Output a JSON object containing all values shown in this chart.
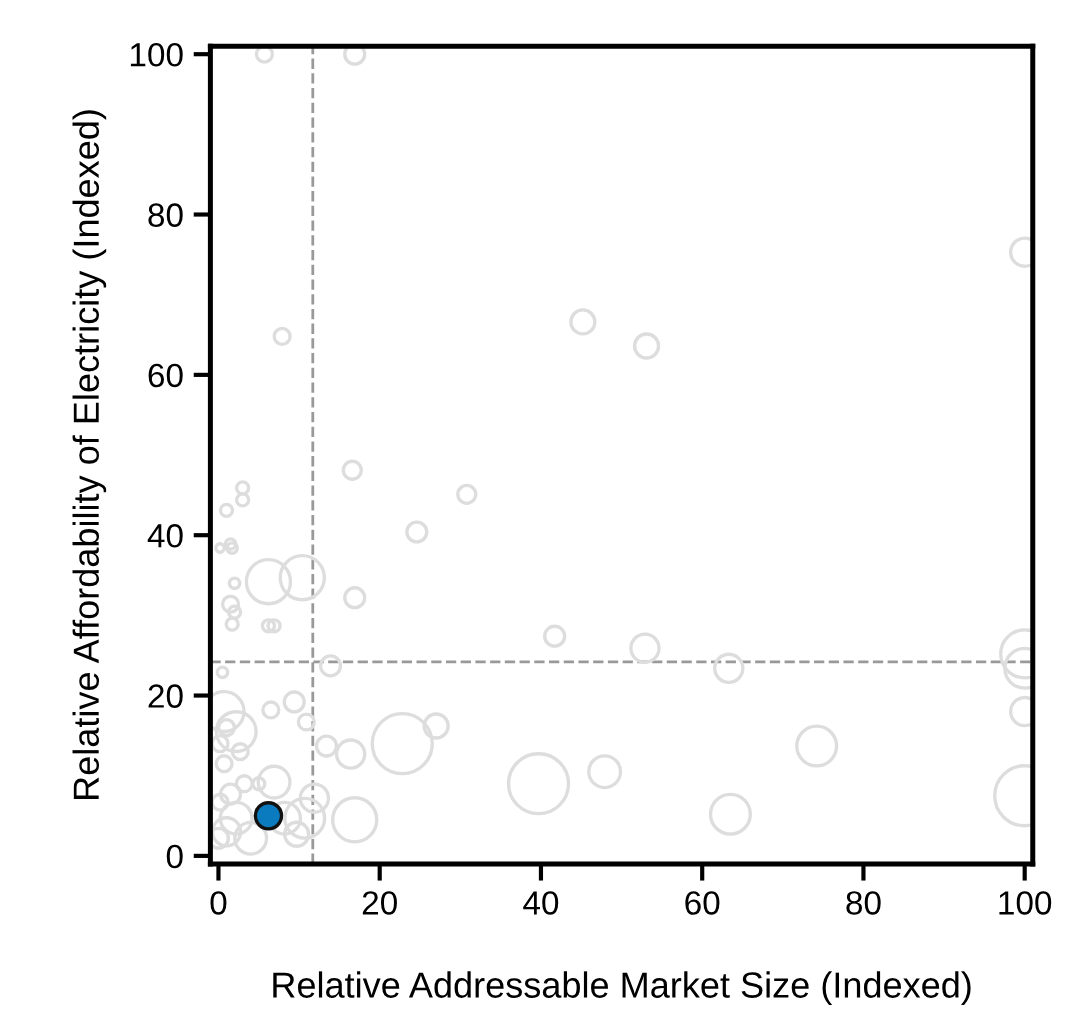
{
  "chart_data": {
    "type": "bubble",
    "xlabel": "Relative Addressable Market Size (Indexed)",
    "ylabel": "Relative Affordability of Electricity (Indexed)",
    "xlim": [
      -1,
      101
    ],
    "ylim": [
      -1,
      101
    ],
    "xticks": [
      0,
      20,
      40,
      60,
      80,
      100
    ],
    "yticks": [
      0,
      20,
      40,
      60,
      80,
      100
    ],
    "grid": false,
    "legend": false,
    "ref_lines": [
      {
        "axis": "x",
        "value": 11.7,
        "label": null,
        "color": "#999999",
        "line_style": "dashed"
      },
      {
        "axis": "y",
        "value": 24.2,
        "label": null,
        "color": "#999999",
        "line_style": "dashed"
      }
    ],
    "series": [
      {
        "color": "#dddddd",
        "x": [
          5.7,
          16.9,
          7.9,
          45.2,
          53.1,
          100,
          16.6,
          3.0,
          3.0,
          1.0,
          30.8,
          24.6,
          1.5,
          1.7,
          0.2,
          6.2,
          10.4,
          2.0,
          16.9,
          1.5,
          2.0,
          1.7,
          6.2,
          6.9,
          41.7,
          13.9,
          0.5,
          52.9,
          63.3,
          100,
          100,
          100,
          74.2,
          63.5,
          100,
          47.9,
          0.7,
          2.2,
          6.5,
          9.4,
          10.9,
          1.0,
          0.2,
          13.4,
          16.4,
          22.8,
          27.0,
          39.7,
          16.9,
          6.9,
          3.2,
          5.0,
          1.5,
          11.9,
          9.7,
          10.7,
          4.0,
          1.0,
          2.2,
          0.0,
          0.2,
          0.7,
          2.7,
          8.2
        ],
        "values": [
          100,
          100,
          64.8,
          66.6,
          63.6,
          75.3,
          48.1,
          45.9,
          44.4,
          43.1,
          45.1,
          40.4,
          38.9,
          38.4,
          38.4,
          34.2,
          34.7,
          34.0,
          32.2,
          31.4,
          30.4,
          28.9,
          28.7,
          28.7,
          27.4,
          23.7,
          22.9,
          25.9,
          23.4,
          25.2,
          23.4,
          18.0,
          13.7,
          5.2,
          7.5,
          10.5,
          18.0,
          15.5,
          18.2,
          19.2,
          16.7,
          16.0,
          14.0,
          13.7,
          12.7,
          14.0,
          16.2,
          9.0,
          4.5,
          9.2,
          9.0,
          9.0,
          7.7,
          7.2,
          2.7,
          4.7,
          2.2,
          3.0,
          4.7,
          2.2,
          6.7,
          11.5,
          13.0,
          4.7
        ],
        "sizes": [
          0.07,
          0.11,
          0.07,
          0.16,
          0.16,
          0.22,
          0.09,
          0.04,
          0.04,
          0.04,
          0.09,
          0.11,
          0.03,
          0.03,
          0.02,
          0.54,
          0.54,
          0.03,
          0.11,
          0.07,
          0.04,
          0.04,
          0.04,
          0.04,
          0.11,
          0.11,
          0.03,
          0.22,
          0.22,
          0.64,
          0.44,
          0.22,
          0.44,
          0.44,
          1,
          0.28,
          0.44,
          0.44,
          0.07,
          0.11,
          0.07,
          0.07,
          0.07,
          0.11,
          0.22,
          1,
          0.16,
          1,
          0.54,
          0.28,
          0.07,
          0.04,
          0.11,
          0.22,
          0.16,
          0.44,
          0.28,
          0.22,
          0.28,
          0.11,
          0.07,
          0.07,
          0.07,
          0.28
        ]
      },
      {
        "color": "#0a7bbf",
        "x": [
          6.2
        ],
        "values": [
          5.0
        ],
        "sizes": [
          0.19
        ]
      }
    ]
  }
}
